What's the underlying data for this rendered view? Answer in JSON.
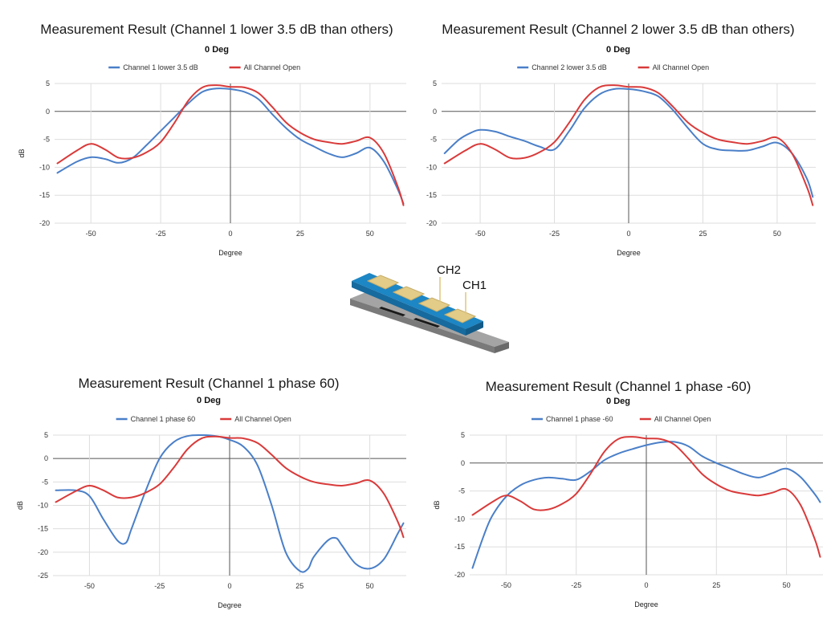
{
  "colors": {
    "series_blue": "#4a7fc8",
    "series_red": "#d93a3a",
    "grid": "#dddddd",
    "zero_line": "#555555",
    "board_blue": "#1d7fb5",
    "board_pad": "#e6cc86",
    "board_base": "#8c8c8c"
  },
  "diagram": {
    "label_ch2": "CH2",
    "label_ch1": "CH1"
  },
  "chart_data": [
    {
      "type": "line",
      "title": "Measurement Result (Channel 1 lower 3.5 dB than others)",
      "subtitle": "0 Deg",
      "xlabel": "Degree",
      "ylabel": "dB",
      "xlim": [
        -63,
        63
      ],
      "ylim": [
        -20,
        5
      ],
      "xticks": [
        -50,
        -25,
        0,
        25,
        50
      ],
      "yticks": [
        5,
        0,
        -5,
        -10,
        -15,
        -20
      ],
      "grid": true,
      "legend_position": "top",
      "series": [
        {
          "name": "Channel 1 lower 3.5 dB",
          "color": "#4a7fc8",
          "x": [
            -62,
            -55,
            -50,
            -45,
            -40,
            -35,
            -30,
            -25,
            -20,
            -15,
            -10,
            -5,
            0,
            5,
            10,
            15,
            20,
            25,
            30,
            35,
            40,
            45,
            50,
            55,
            60,
            62
          ],
          "y": [
            -11,
            -9,
            -8.2,
            -8.5,
            -9.2,
            -8.3,
            -6,
            -3.5,
            -1,
            1.5,
            3.5,
            4.1,
            4,
            3.5,
            2.2,
            -0.5,
            -3,
            -5,
            -6.3,
            -7.5,
            -8.2,
            -7.5,
            -6.5,
            -9,
            -14,
            -16.5
          ]
        },
        {
          "name": "All Channel Open",
          "color": "#d93a3a",
          "x": [
            -62,
            -55,
            -50,
            -45,
            -40,
            -35,
            -30,
            -25,
            -20,
            -15,
            -10,
            -5,
            0,
            5,
            10,
            15,
            20,
            25,
            30,
            35,
            40,
            45,
            50,
            55,
            60,
            62
          ],
          "y": [
            -9.3,
            -7,
            -5.8,
            -6.8,
            -8.3,
            -8.3,
            -7.3,
            -5.5,
            -2,
            2,
            4.3,
            4.7,
            4.4,
            4.3,
            3.3,
            0.8,
            -2,
            -3.8,
            -5,
            -5.5,
            -5.8,
            -5.3,
            -4.7,
            -7.5,
            -13.5,
            -16.8
          ]
        }
      ]
    },
    {
      "type": "line",
      "title": "Measurement Result (Channel 2 lower 3.5 dB than others)",
      "subtitle": "0 Deg",
      "xlabel": "Degree",
      "ylabel": "dB",
      "xlim": [
        -63,
        63
      ],
      "ylim": [
        -20,
        5
      ],
      "xticks": [
        -50,
        -25,
        0,
        25,
        50
      ],
      "yticks": [
        5,
        0,
        -5,
        -10,
        -15,
        -20
      ],
      "grid": true,
      "legend_position": "top",
      "series": [
        {
          "name": "Channel 2 lower 3.5 dB",
          "color": "#4a7fc8",
          "x": [
            -62,
            -57,
            -53,
            -50,
            -45,
            -40,
            -35,
            -30,
            -25,
            -20,
            -15,
            -10,
            -5,
            0,
            5,
            10,
            15,
            20,
            25,
            30,
            35,
            40,
            45,
            50,
            55,
            60,
            62
          ],
          "y": [
            -7.5,
            -5,
            -3.8,
            -3.3,
            -3.6,
            -4.5,
            -5.3,
            -6.3,
            -6.8,
            -3.5,
            0.5,
            3,
            4,
            4,
            3.6,
            2.7,
            0.2,
            -3,
            -5.8,
            -6.8,
            -7,
            -7,
            -6.3,
            -5.6,
            -7.5,
            -12,
            -15.3
          ]
        },
        {
          "name": "All Channel Open",
          "color": "#d93a3a",
          "x": [
            -62,
            -55,
            -50,
            -45,
            -40,
            -35,
            -30,
            -25,
            -20,
            -15,
            -10,
            -5,
            0,
            5,
            10,
            15,
            20,
            25,
            30,
            35,
            40,
            45,
            50,
            55,
            60,
            62
          ],
          "y": [
            -9.3,
            -7,
            -5.8,
            -6.8,
            -8.3,
            -8.3,
            -7.3,
            -5.5,
            -2,
            2,
            4.3,
            4.7,
            4.4,
            4.3,
            3.3,
            0.8,
            -2,
            -3.8,
            -5,
            -5.5,
            -5.8,
            -5.3,
            -4.7,
            -7.5,
            -13.5,
            -16.8
          ]
        }
      ]
    },
    {
      "type": "line",
      "title": "Measurement Result (Channel 1 phase 60)",
      "subtitle": "0 Deg",
      "xlabel": "Degree",
      "ylabel": "dB",
      "xlim": [
        -63,
        63
      ],
      "ylim": [
        -25,
        5
      ],
      "xticks": [
        -50,
        -25,
        0,
        25,
        50
      ],
      "yticks": [
        5,
        0,
        -5,
        -10,
        -15,
        -20,
        -25
      ],
      "grid": true,
      "legend_position": "top",
      "series": [
        {
          "name": "Channel 1 phase 60",
          "color": "#4a7fc8",
          "x": [
            -62,
            -55,
            -50,
            -45,
            -40,
            -37,
            -35,
            -30,
            -25,
            -20,
            -15,
            -10,
            -5,
            0,
            5,
            10,
            15,
            20,
            25,
            28,
            30,
            35,
            38,
            40,
            45,
            50,
            55,
            60,
            62
          ],
          "y": [
            -6.8,
            -6.8,
            -8,
            -13,
            -17.5,
            -18,
            -15,
            -7,
            0,
            3.5,
            4.8,
            5,
            4.8,
            4,
            2.5,
            -1.5,
            -10,
            -20,
            -24,
            -23.5,
            -21,
            -17.5,
            -17,
            -18.5,
            -22.5,
            -23.5,
            -21.5,
            -16,
            -13.8
          ]
        },
        {
          "name": "All Channel Open",
          "color": "#d93a3a",
          "x": [
            -62,
            -55,
            -50,
            -45,
            -40,
            -35,
            -30,
            -25,
            -20,
            -15,
            -10,
            -5,
            0,
            5,
            10,
            15,
            20,
            25,
            30,
            35,
            40,
            45,
            50,
            55,
            60,
            62
          ],
          "y": [
            -9.3,
            -7,
            -5.8,
            -6.8,
            -8.3,
            -8.3,
            -7.3,
            -5.5,
            -2,
            2,
            4.3,
            4.7,
            4.4,
            4.3,
            3.3,
            0.8,
            -2,
            -3.8,
            -5,
            -5.5,
            -5.8,
            -5.3,
            -4.7,
            -7.5,
            -13.5,
            -16.8
          ]
        }
      ]
    },
    {
      "type": "line",
      "title": "Measurement Result (Channel 1 phase -60)",
      "subtitle": "0 Deg",
      "xlabel": "Degree",
      "ylabel": "dB",
      "xlim": [
        -63,
        63
      ],
      "ylim": [
        -20,
        5
      ],
      "xticks": [
        -50,
        -25,
        0,
        25,
        50
      ],
      "yticks": [
        5,
        0,
        -5,
        -10,
        -15,
        -20
      ],
      "grid": true,
      "legend_position": "top",
      "series": [
        {
          "name": "Channel 1 phase -60",
          "color": "#4a7fc8",
          "x": [
            -62,
            -58,
            -55,
            -50,
            -45,
            -40,
            -35,
            -30,
            -25,
            -20,
            -15,
            -10,
            -5,
            0,
            5,
            10,
            15,
            20,
            25,
            30,
            35,
            40,
            45,
            50,
            55,
            60,
            62
          ],
          "y": [
            -18.8,
            -13,
            -9.5,
            -6,
            -4,
            -3,
            -2.6,
            -2.8,
            -3,
            -1.5,
            0.5,
            1.7,
            2.5,
            3.2,
            3.7,
            3.8,
            3,
            1.2,
            0,
            -1,
            -2,
            -2.6,
            -1.8,
            -1,
            -2.5,
            -5.5,
            -7
          ]
        },
        {
          "name": "All Channel Open",
          "color": "#d93a3a",
          "x": [
            -62,
            -55,
            -50,
            -45,
            -40,
            -35,
            -30,
            -25,
            -20,
            -15,
            -10,
            -5,
            0,
            5,
            10,
            15,
            20,
            25,
            30,
            35,
            40,
            45,
            50,
            55,
            60,
            62
          ],
          "y": [
            -9.3,
            -7,
            -5.8,
            -6.8,
            -8.3,
            -8.3,
            -7.3,
            -5.5,
            -2,
            2,
            4.3,
            4.7,
            4.4,
            4.3,
            3.3,
            0.8,
            -2,
            -3.8,
            -5,
            -5.5,
            -5.8,
            -5.3,
            -4.7,
            -7.5,
            -13.5,
            -16.8
          ]
        }
      ]
    }
  ]
}
